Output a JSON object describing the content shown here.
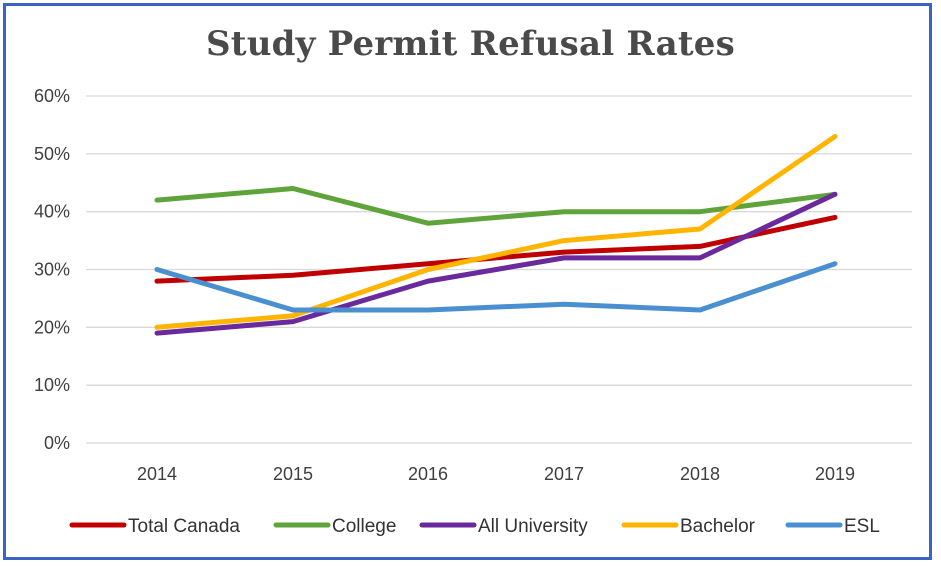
{
  "chart_data": {
    "type": "line",
    "title": "Study Permit Refusal Rates",
    "categories": [
      "2014",
      "2015",
      "2016",
      "2017",
      "2018",
      "2019"
    ],
    "yticks": [
      "0%",
      "10%",
      "20%",
      "30%",
      "40%",
      "50%",
      "60%"
    ],
    "ylim": [
      0,
      60
    ],
    "grid": true,
    "legend_position": "bottom",
    "series": [
      {
        "name": "Total Canada",
        "color": "#c00000",
        "values": [
          28,
          29,
          31,
          33,
          34,
          39
        ]
      },
      {
        "name": "College",
        "color": "#5ea43a",
        "values": [
          42,
          44,
          38,
          40,
          40,
          43
        ]
      },
      {
        "name": "All University",
        "color": "#6a2a9e",
        "values": [
          19,
          21,
          28,
          32,
          32,
          43
        ]
      },
      {
        "name": "Bachelor",
        "color": "#ffb400",
        "values": [
          20,
          22,
          30,
          35,
          37,
          53
        ]
      },
      {
        "name": "ESL",
        "color": "#4a90d0",
        "values": [
          30,
          23,
          23,
          24,
          23,
          31
        ]
      }
    ]
  }
}
